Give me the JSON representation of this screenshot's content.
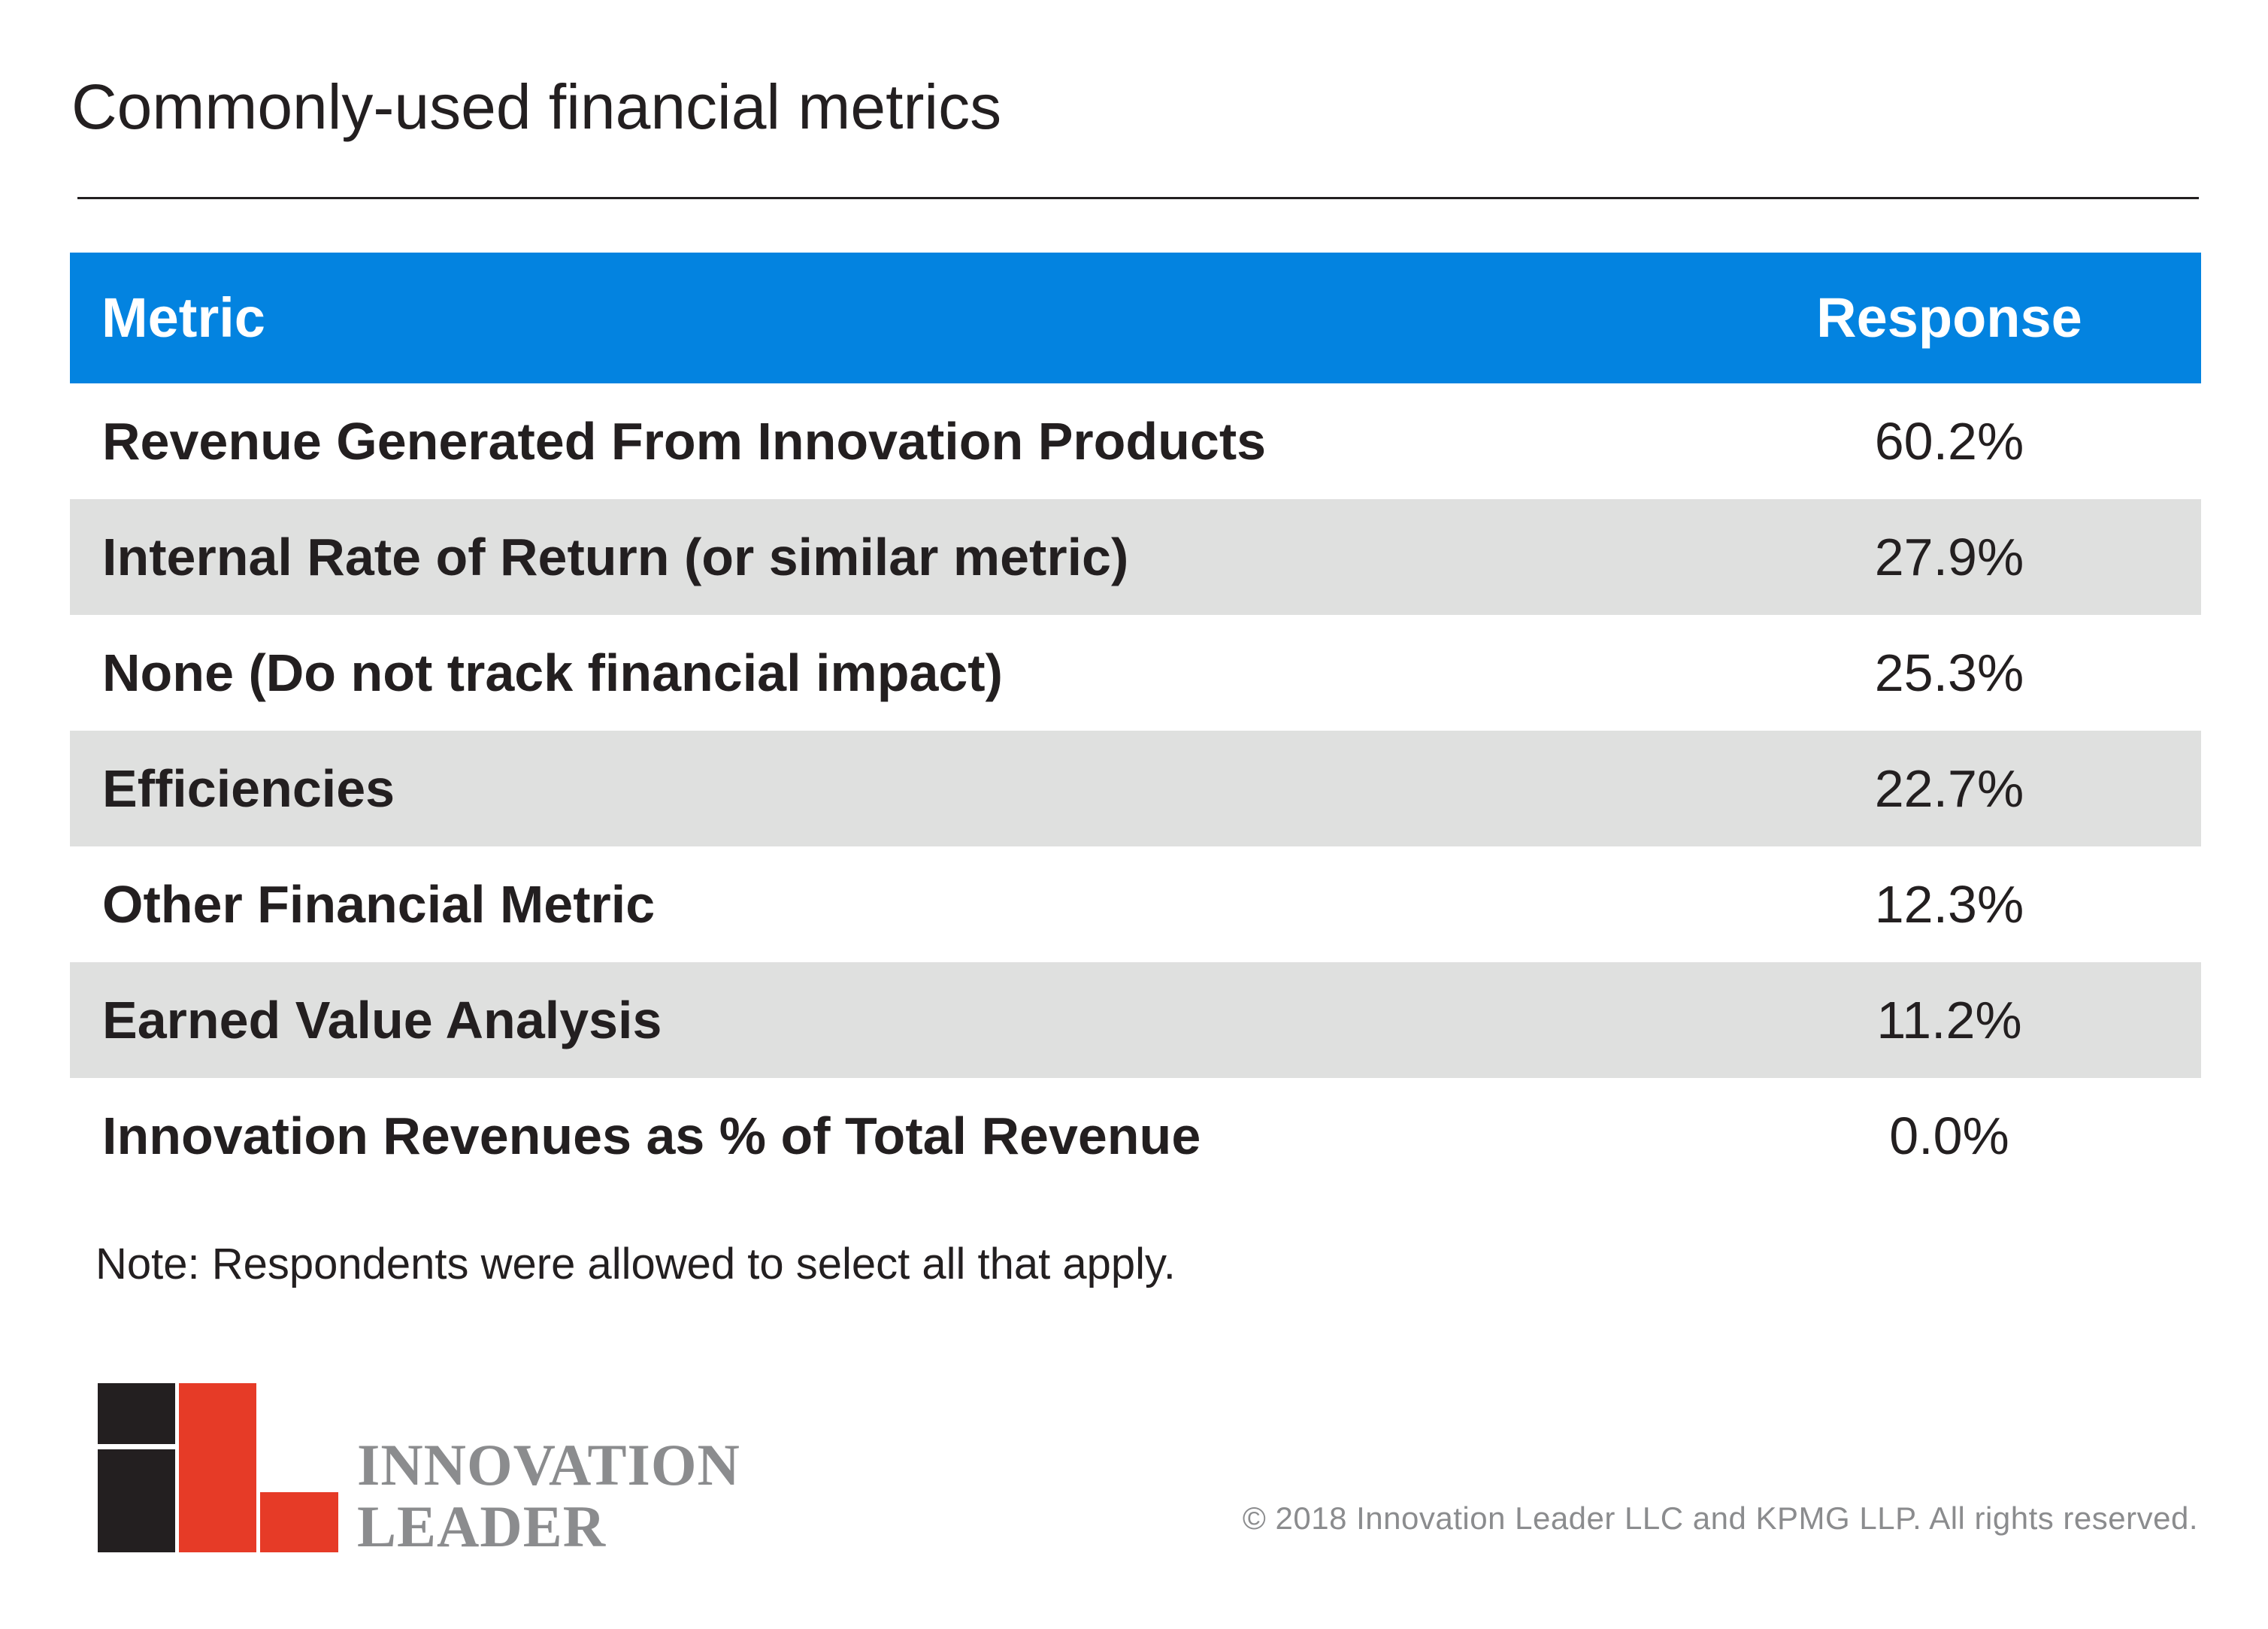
{
  "title": "Commonly-used financial metrics",
  "table": {
    "headers": {
      "metric": "Metric",
      "response": "Response"
    },
    "header_color": "#0383e0",
    "stripe_color": "#dfe0df"
  },
  "chart_data": {
    "type": "table",
    "title": "Commonly-used financial metrics",
    "columns": [
      "Metric",
      "Response"
    ],
    "rows": [
      {
        "metric": "Revenue Generated From Innovation Products",
        "response": "60.2%",
        "value": 60.2
      },
      {
        "metric": "Internal Rate of Return (or similar metric)",
        "response": "27.9%",
        "value": 27.9
      },
      {
        "metric": "None (Do not track financial impact)",
        "response": "25.3%",
        "value": 25.3
      },
      {
        "metric": "Efficiencies",
        "response": "22.7%",
        "value": 22.7
      },
      {
        "metric": "Other Financial Metric",
        "response": "12.3%",
        "value": 12.3
      },
      {
        "metric": "Earned Value Analysis",
        "response": "11.2%",
        "value": 11.2
      },
      {
        "metric": "Innovation Revenues as % of Total Revenue",
        "response": "0.0%",
        "value": 0.0
      }
    ]
  },
  "note": "Note: Respondents were allowed to select all that apply.",
  "logo": {
    "line1": "INNOVATION",
    "line2": "LEADER",
    "colors": {
      "dark": "#231f20",
      "red": "#e63b27",
      "text": "#8b8c8e"
    }
  },
  "copyright": "© 2018 Innovation Leader LLC and KPMG LLP. All rights reserved."
}
